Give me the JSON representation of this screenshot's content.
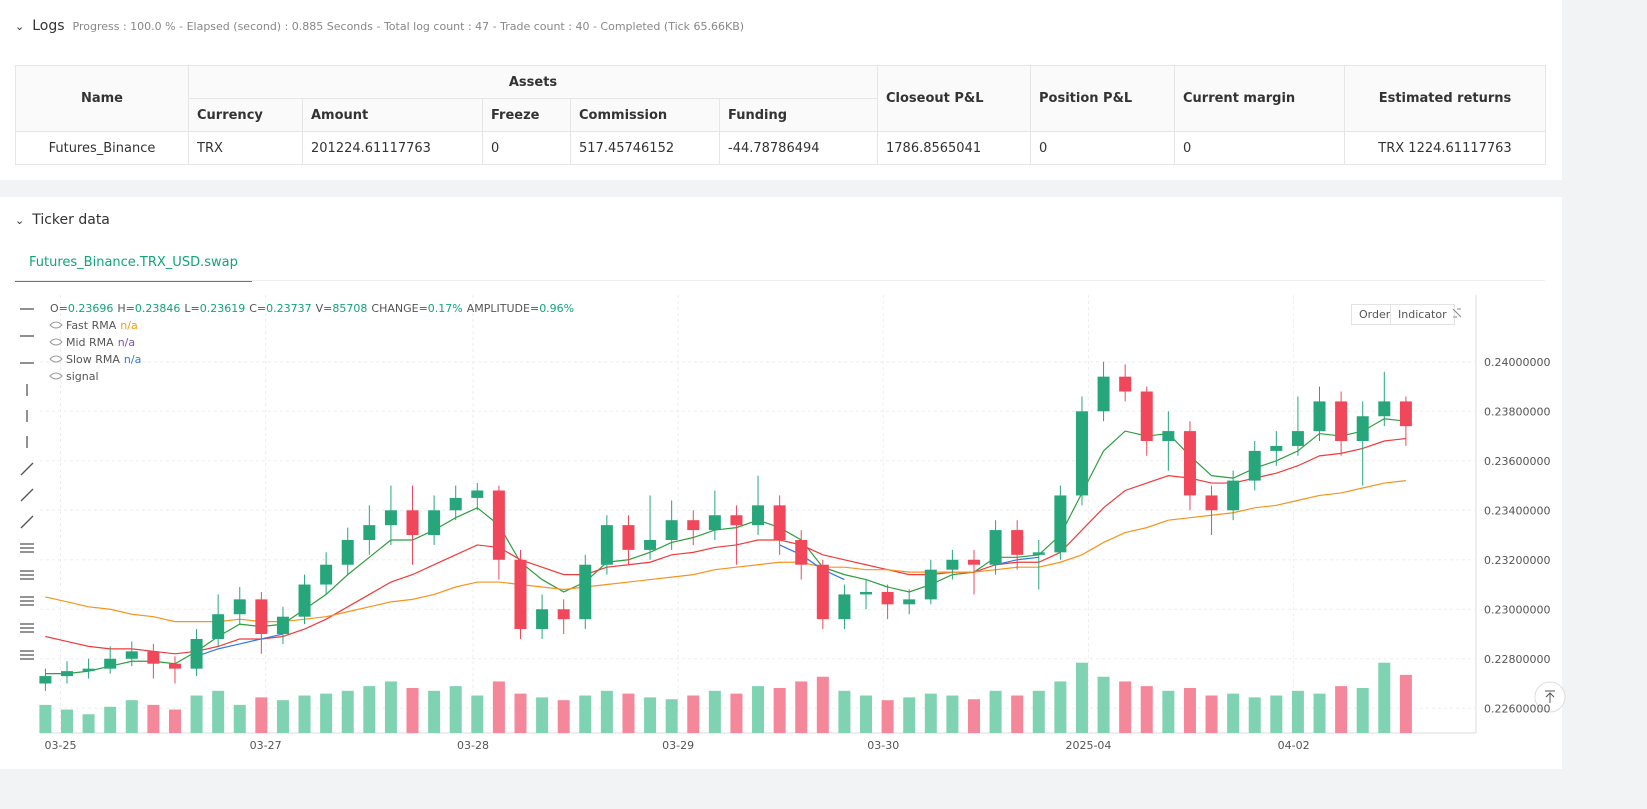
{
  "logs": {
    "title": "Logs",
    "status": "Progress : 100.0 % - Elapsed (second) : 0.885  Seconds - Total log count : 47 - Trade count : 40 - Completed (Tick 65.66KB)"
  },
  "table": {
    "header_top": [
      "Name",
      "Assets",
      "Closeout P&L",
      "Position P&L",
      "Current margin",
      "Estimated returns"
    ],
    "header_sub": [
      "Currency",
      "Amount",
      "Freeze",
      "Commission",
      "Funding"
    ],
    "rows": [
      [
        "Futures_Binance",
        "TRX",
        "201224.61117763",
        "0",
        "517.45746152",
        "-44.78786494",
        "1786.8565041",
        "0",
        "0",
        "TRX 1224.61117763"
      ]
    ]
  },
  "ticker": {
    "title": "Ticker data",
    "tab": "Futures_Binance.TRX_USD.swap",
    "buttons": [
      "Order",
      "Indicator"
    ]
  },
  "chart": {
    "type": "candlestick",
    "ohlc": [
      {
        "label": "O=",
        "value": "0.23696"
      },
      {
        "label": "H=",
        "value": "0.23846"
      },
      {
        "label": "L=",
        "value": "0.23619"
      },
      {
        "label": "C=",
        "value": "0.23737"
      },
      {
        "label": "V=",
        "value": "85708"
      },
      {
        "label": "CHANGE=",
        "value": "0.17%"
      },
      {
        "label": "AMPLITUDE=",
        "value": "0.96%"
      }
    ],
    "legend": [
      {
        "name": "Fast RMA",
        "value": "n/a",
        "color": "#f39c12"
      },
      {
        "name": "Mid RMA",
        "value": "n/a",
        "color": "#7b52ab"
      },
      {
        "name": "Slow RMA",
        "value": "n/a",
        "color": "#2d7be5"
      },
      {
        "name": "signal"
      }
    ],
    "up_color": "#26a67a",
    "down_color": "#f0475b",
    "vol_up_color": "#7fd3b2",
    "vol_down_color": "#f5879a",
    "xlim": [
      -0.25,
      66.2
    ],
    "ylim": [
      0.225,
      0.2427
    ],
    "volume_lim": [
      0,
      80
    ],
    "yticks": [
      {
        "value": 0.226,
        "label": "0.22600000"
      },
      {
        "value": 0.228,
        "label": "0.22800000"
      },
      {
        "value": 0.23,
        "label": "0.23000000"
      },
      {
        "value": 0.232,
        "label": "0.23200000"
      },
      {
        "value": 0.234,
        "label": "0.23400000"
      },
      {
        "value": 0.236,
        "label": "0.23600000"
      },
      {
        "value": 0.238,
        "label": "0.23800000"
      },
      {
        "value": 0.24,
        "label": "0.24000000"
      }
    ],
    "xticks": [
      {
        "value": 0.7,
        "label": "03-25"
      },
      {
        "value": 10.2,
        "label": "03-27"
      },
      {
        "value": 19.8,
        "label": "03-28"
      },
      {
        "value": 29.3,
        "label": "03-29"
      },
      {
        "value": 38.8,
        "label": "03-30"
      },
      {
        "value": 48.3,
        "label": "2025-04"
      },
      {
        "value": 57.8,
        "label": "04-02"
      }
    ],
    "open": [
      0.227,
      0.2273,
      0.2275,
      0.2276,
      0.228,
      0.2283,
      0.2278,
      0.2276,
      0.2288,
      0.2298,
      0.2304,
      0.229,
      0.2297,
      0.231,
      0.2318,
      0.2328,
      0.2334,
      0.234,
      0.233,
      0.234,
      0.2345,
      0.2348,
      0.232,
      0.2292,
      0.23,
      0.2296,
      0.2318,
      0.2334,
      0.2324,
      0.2328,
      0.2336,
      0.2332,
      0.2338,
      0.2334,
      0.2342,
      0.2328,
      0.2318,
      0.2296,
      0.2306,
      0.2307,
      0.2302,
      0.2304,
      0.2316,
      0.232,
      0.2318,
      0.2332,
      0.2322,
      0.2323,
      0.2346,
      0.238,
      0.2394,
      0.2388,
      0.2368,
      0.2372,
      0.2346,
      0.234,
      0.2352,
      0.2364,
      0.2366,
      0.2372,
      0.2384,
      0.2368,
      0.2378,
      0.2384
    ],
    "high": [
      0.2276,
      0.2279,
      0.228,
      0.2285,
      0.2287,
      0.2286,
      0.2281,
      0.2292,
      0.2306,
      0.2309,
      0.2307,
      0.2301,
      0.2314,
      0.2323,
      0.2333,
      0.2342,
      0.235,
      0.235,
      0.2346,
      0.235,
      0.2351,
      0.235,
      0.2324,
      0.2306,
      0.2304,
      0.2322,
      0.2338,
      0.2338,
      0.2346,
      0.2344,
      0.234,
      0.2348,
      0.2342,
      0.2354,
      0.2346,
      0.2332,
      0.232,
      0.231,
      0.2312,
      0.231,
      0.2308,
      0.232,
      0.2324,
      0.2324,
      0.2336,
      0.2336,
      0.2328,
      0.235,
      0.2386,
      0.24,
      0.2399,
      0.239,
      0.238,
      0.2376,
      0.235,
      0.2356,
      0.2368,
      0.2372,
      0.2386,
      0.239,
      0.2388,
      0.2384,
      0.2396,
      0.2386
    ],
    "low": [
      0.2267,
      0.227,
      0.2272,
      0.2274,
      0.2277,
      0.2272,
      0.227,
      0.2273,
      0.2285,
      0.2294,
      0.2282,
      0.2286,
      0.2294,
      0.2306,
      0.2314,
      0.2322,
      0.2326,
      0.2318,
      0.2326,
      0.2336,
      0.234,
      0.2312,
      0.2288,
      0.2288,
      0.229,
      0.2292,
      0.2314,
      0.2318,
      0.232,
      0.2324,
      0.2326,
      0.2328,
      0.2318,
      0.233,
      0.2322,
      0.2312,
      0.2292,
      0.2292,
      0.23,
      0.2296,
      0.2298,
      0.2302,
      0.2312,
      0.2306,
      0.2314,
      0.2316,
      0.2308,
      0.232,
      0.2342,
      0.2376,
      0.2384,
      0.2362,
      0.2356,
      0.234,
      0.233,
      0.2336,
      0.2348,
      0.2358,
      0.2362,
      0.2368,
      0.2362,
      0.235,
      0.2374,
      0.2366
    ],
    "close": [
      0.2273,
      0.2275,
      0.2276,
      0.228,
      0.2283,
      0.2278,
      0.2276,
      0.2288,
      0.2298,
      0.2304,
      0.229,
      0.2297,
      0.231,
      0.2318,
      0.2328,
      0.2334,
      0.234,
      0.233,
      0.234,
      0.2345,
      0.2348,
      0.232,
      0.2292,
      0.23,
      0.2296,
      0.2318,
      0.2334,
      0.2324,
      0.2328,
      0.2336,
      0.2332,
      0.2338,
      0.2334,
      0.2342,
      0.2328,
      0.2318,
      0.2296,
      0.2306,
      0.2307,
      0.2302,
      0.2304,
      0.2316,
      0.232,
      0.2318,
      0.2332,
      0.2322,
      0.2323,
      0.2346,
      0.238,
      0.2394,
      0.2388,
      0.2368,
      0.2372,
      0.2346,
      0.234,
      0.2352,
      0.2364,
      0.2366,
      0.2372,
      0.2384,
      0.2368,
      0.2378,
      0.2384,
      0.2374
    ],
    "volume": [
      30,
      25,
      20,
      28,
      35,
      30,
      25,
      40,
      45,
      30,
      38,
      35,
      40,
      42,
      45,
      50,
      55,
      48,
      45,
      50,
      40,
      55,
      42,
      38,
      35,
      40,
      45,
      42,
      38,
      36,
      40,
      45,
      42,
      50,
      48,
      55,
      60,
      45,
      40,
      35,
      38,
      42,
      40,
      36,
      45,
      40,
      45,
      55,
      75,
      60,
      55,
      50,
      45,
      48,
      40,
      42,
      38,
      40,
      45,
      42,
      50,
      48,
      75,
      62
    ],
    "lines": [
      {
        "color": "#2e9e3e",
        "values": [
          0.2274,
          0.2274,
          0.2275,
          0.2277,
          0.2279,
          0.2279,
          0.2278,
          0.2283,
          0.2289,
          0.2294,
          0.2293,
          0.2294,
          0.23,
          0.2306,
          0.2314,
          0.2321,
          0.2328,
          0.2328,
          0.2332,
          0.2337,
          0.2341,
          0.2334,
          0.2319,
          0.2312,
          0.2307,
          0.2311,
          0.2319,
          0.232,
          0.2323,
          0.2327,
          0.2329,
          0.2332,
          0.2333,
          0.2336,
          0.2333,
          0.2328,
          0.2317,
          0.2314,
          0.2312,
          0.2309,
          0.2307,
          0.231,
          0.2314,
          0.2315,
          0.2321,
          0.2321,
          0.2322,
          0.233,
          0.2347,
          0.2364,
          0.2372,
          0.237,
          0.2371,
          0.2362,
          0.2354,
          0.2353,
          0.2357,
          0.236,
          0.2364,
          0.2371,
          0.237,
          0.2372,
          0.2377,
          0.2376
        ]
      },
      {
        "color": "#ef3b3b",
        "values": [
          0.2289,
          0.2287,
          0.2285,
          0.2284,
          0.2284,
          0.2283,
          0.2282,
          0.2283,
          0.2285,
          0.2288,
          0.2288,
          0.2289,
          0.2292,
          0.2296,
          0.2301,
          0.2306,
          0.2311,
          0.2314,
          0.2318,
          0.2322,
          0.2326,
          0.2325,
          0.232,
          0.2317,
          0.2314,
          0.2314,
          0.2317,
          0.2318,
          0.2319,
          0.2322,
          0.2323,
          0.2325,
          0.2326,
          0.2328,
          0.2328,
          0.2326,
          0.2322,
          0.232,
          0.2318,
          0.2316,
          0.2314,
          0.2314,
          0.2315,
          0.2315,
          0.2318,
          0.2319,
          0.2319,
          0.2323,
          0.2332,
          0.2341,
          0.2348,
          0.2351,
          0.2354,
          0.2353,
          0.2351,
          0.2351,
          0.2353,
          0.2355,
          0.2358,
          0.2362,
          0.2363,
          0.2365,
          0.2368,
          0.2369
        ]
      },
      {
        "color": "#f7931e",
        "values": [
          0.2305,
          0.2303,
          0.2301,
          0.23,
          0.2298,
          0.2297,
          0.2295,
          0.2295,
          0.2295,
          0.2296,
          0.2295,
          0.2295,
          0.2296,
          0.2297,
          0.2299,
          0.2301,
          0.2303,
          0.2304,
          0.2306,
          0.2309,
          0.2311,
          0.2311,
          0.231,
          0.2309,
          0.2308,
          0.2309,
          0.231,
          0.2311,
          0.2312,
          0.2313,
          0.2314,
          0.2316,
          0.2317,
          0.2318,
          0.2319,
          0.2319,
          0.2317,
          0.2317,
          0.2316,
          0.2316,
          0.2315,
          0.2315,
          0.2315,
          0.2315,
          0.2316,
          0.2317,
          0.2317,
          0.2319,
          0.2322,
          0.2327,
          0.2331,
          0.2333,
          0.2336,
          0.2337,
          0.2338,
          0.2339,
          0.2341,
          0.2342,
          0.2344,
          0.2346,
          0.2347,
          0.2349,
          0.2351,
          0.2352
        ]
      },
      {
        "color": "#2d7be5",
        "values": [
          null,
          null,
          null,
          null,
          null,
          null,
          null,
          0.2281,
          0.2284,
          0.2286,
          0.2288,
          0.229,
          null,
          null,
          null,
          null,
          null,
          null,
          null,
          null,
          null,
          null,
          null,
          null,
          null,
          null,
          null,
          null,
          null,
          null,
          null,
          null,
          null,
          null,
          0.2326,
          0.2322,
          0.2316,
          0.2312,
          null,
          null,
          null,
          null,
          null,
          null,
          0.2318,
          0.232,
          0.2321,
          null,
          null,
          null,
          null,
          null,
          null,
          null,
          null,
          null,
          null,
          null,
          null,
          null,
          null,
          null,
          null,
          null
        ]
      }
    ]
  }
}
